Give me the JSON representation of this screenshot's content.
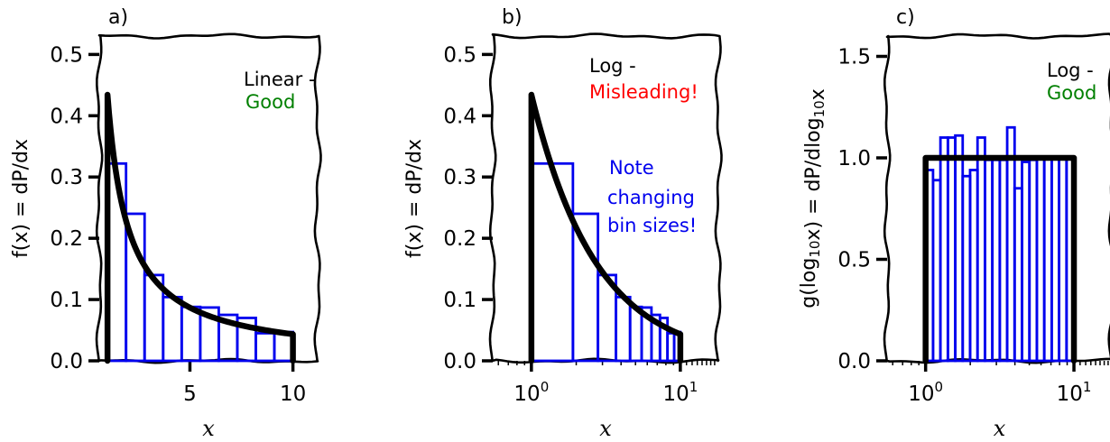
{
  "chart_data": [
    {
      "panel_label": "a)",
      "type": "line+histogram",
      "xscale": "linear",
      "xlim": [
        0.6,
        11.2
      ],
      "ylim": [
        0,
        0.53
      ],
      "xticks": [
        {
          "value": 5,
          "label": "5"
        },
        {
          "value": 10,
          "label": "10"
        }
      ],
      "yticks": [
        {
          "value": 0.0,
          "label": "0.0"
        },
        {
          "value": 0.1,
          "label": "0.1"
        },
        {
          "value": 0.2,
          "label": "0.2"
        },
        {
          "value": 0.3,
          "label": "0.3"
        },
        {
          "value": 0.4,
          "label": "0.4"
        },
        {
          "value": 0.5,
          "label": "0.5"
        }
      ],
      "xlabel": "x",
      "ylabel": "f(x) = dP/dx",
      "curve": {
        "color": "#000000",
        "x_from": 1,
        "x_to": 10,
        "function": "1/(x ln 10)"
      },
      "histogram": {
        "color": "#0000ee",
        "bin_edges": [
          1,
          1.9,
          2.8,
          3.7,
          4.6,
          5.5,
          6.4,
          7.3,
          8.2,
          9.1,
          10
        ],
        "heights": [
          0.322,
          0.24,
          0.14,
          0.104,
          0.088,
          0.087,
          0.075,
          0.07,
          0.045,
          0.047
        ]
      },
      "annotations": [
        {
          "text": "Linear -",
          "color": "#000000"
        },
        {
          "text": "Good",
          "color": "#008000"
        }
      ]
    },
    {
      "panel_label": "b)",
      "type": "line+histogram",
      "xscale": "log",
      "xlim": [
        0.55,
        18
      ],
      "ylim": [
        0,
        0.53
      ],
      "xticks": [
        {
          "value": 1,
          "base": "10",
          "exp": "0"
        },
        {
          "value": 10,
          "base": "10",
          "exp": "1"
        }
      ],
      "yticks": [
        {
          "value": 0.0,
          "label": "0.0"
        },
        {
          "value": 0.1,
          "label": "0.1"
        },
        {
          "value": 0.2,
          "label": "0.2"
        },
        {
          "value": 0.3,
          "label": "0.3"
        },
        {
          "value": 0.4,
          "label": "0.4"
        },
        {
          "value": 0.5,
          "label": "0.5"
        }
      ],
      "xlabel": "x",
      "ylabel": "f(x) = dP/dx",
      "curve": {
        "color": "#000000",
        "x_from": 1,
        "x_to": 10,
        "function": "1/(x ln 10)"
      },
      "histogram": {
        "color": "#0000ee",
        "bin_edges": [
          1,
          1.9,
          2.8,
          3.7,
          4.6,
          5.5,
          6.4,
          7.3,
          8.2,
          9.1,
          10
        ],
        "heights": [
          0.322,
          0.24,
          0.14,
          0.104,
          0.088,
          0.087,
          0.075,
          0.07,
          0.045,
          0.047
        ]
      },
      "annotations": [
        {
          "text": "Log -",
          "color": "#000000"
        },
        {
          "text": "Misleading!",
          "color": "#ff0000"
        },
        {
          "text": "Note",
          "color": "#0000ee"
        },
        {
          "text": "changing",
          "color": "#0000ee"
        },
        {
          "text": "bin sizes!",
          "color": "#0000ee"
        }
      ]
    },
    {
      "panel_label": "c)",
      "type": "line+histogram",
      "xscale": "log",
      "xlim": [
        0.55,
        18
      ],
      "ylim": [
        0,
        1.6
      ],
      "xticks": [
        {
          "value": 1,
          "base": "10",
          "exp": "0"
        },
        {
          "value": 10,
          "base": "10",
          "exp": "1"
        }
      ],
      "yticks": [
        {
          "value": 0.0,
          "label": "0.0"
        },
        {
          "value": 0.5,
          "label": "0.5"
        },
        {
          "value": 1.0,
          "label": "1.0"
        },
        {
          "value": 1.5,
          "label": "1.5"
        }
      ],
      "xlabel": "x",
      "ylabel": "g(log10x) = dP/dlog10x",
      "curve": {
        "color": "#000000",
        "x_from": 1,
        "x_to": 10,
        "function": "constant 1.0"
      },
      "histogram": {
        "color": "#0000ee",
        "bin_edges": [
          1,
          1.122,
          1.259,
          1.413,
          1.585,
          1.778,
          1.995,
          2.239,
          2.512,
          2.818,
          3.162,
          3.548,
          3.981,
          4.467,
          5.012,
          5.623,
          6.31,
          7.079,
          7.943,
          8.913,
          10
        ],
        "heights": [
          0.94,
          0.89,
          1.1,
          1.1,
          1.11,
          0.91,
          0.94,
          1.1,
          0.99,
          0.99,
          0.99,
          1.15,
          0.85,
          0.98,
          0.99,
          1.0,
          1.0,
          1.0,
          1.0,
          1.0
        ]
      },
      "annotations": [
        {
          "text": "Log -",
          "color": "#000000"
        },
        {
          "text": "Good",
          "color": "#008000"
        }
      ]
    }
  ]
}
